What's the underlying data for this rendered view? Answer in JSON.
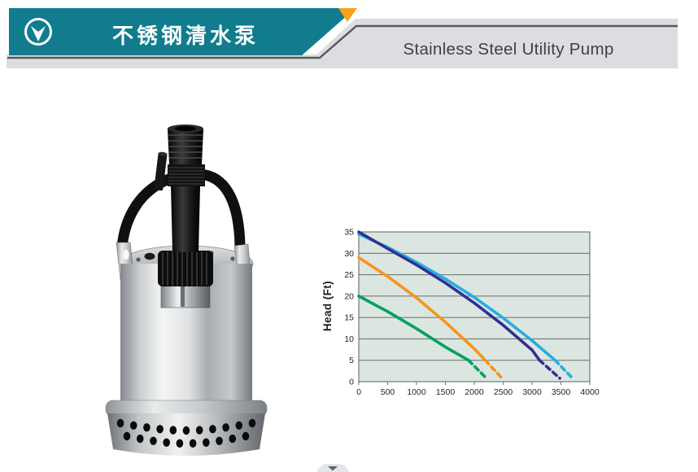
{
  "header": {
    "badge_icon": "circle-down-arrow-icon",
    "title_cn": "不锈钢清水泵",
    "title_en": "Stainless Steel Utility Pump",
    "teal_color": "#107c8d",
    "accent_orange": "#f9a11b",
    "band_gray": "#dcdde0",
    "line_gray": "#58595b"
  },
  "product_image": {
    "alt": "stainless steel submersible utility pump with hose barb outlet, carry handle and perforated strainer base"
  },
  "chart_data": {
    "type": "line",
    "title": "",
    "xlabel": "",
    "ylabel": "Head (Ft)",
    "xlim": [
      0,
      4000
    ],
    "ylim": [
      0,
      35
    ],
    "x_ticks": [
      0,
      500,
      1000,
      1500,
      2000,
      2500,
      3000,
      3500,
      4000
    ],
    "y_ticks": [
      0,
      5,
      10,
      15,
      20,
      25,
      30,
      35
    ],
    "grid": "horizontal",
    "legend": "none",
    "plot_bg": "#dce6e0",
    "grid_color": "#75787a",
    "tick_color": "#231f20",
    "series": [
      {
        "name": "curve-light-blue",
        "color": "#29abe2",
        "solid": [
          [
            0,
            34.5
          ],
          [
            500,
            31.4
          ],
          [
            1000,
            27.9
          ],
          [
            1500,
            24.0
          ],
          [
            2000,
            19.7
          ],
          [
            2500,
            14.9
          ],
          [
            3000,
            9.6
          ],
          [
            3400,
            5.0
          ]
        ],
        "dashed": [
          [
            3400,
            5.0
          ],
          [
            3700,
            0.8
          ]
        ]
      },
      {
        "name": "curve-dark-blue",
        "color": "#2e3192",
        "solid": [
          [
            0,
            35.0
          ],
          [
            500,
            31.1
          ],
          [
            1000,
            27.3
          ],
          [
            1500,
            23.1
          ],
          [
            2000,
            18.4
          ],
          [
            2500,
            13.2
          ],
          [
            3000,
            7.4
          ],
          [
            3130,
            5.0
          ]
        ],
        "dashed": [
          [
            3130,
            5.0
          ],
          [
            3480,
            0.8
          ]
        ]
      },
      {
        "name": "curve-orange",
        "color": "#f7941e",
        "solid": [
          [
            0,
            29.0
          ],
          [
            500,
            24.6
          ],
          [
            1000,
            19.6
          ],
          [
            1500,
            13.9
          ],
          [
            2000,
            7.7
          ],
          [
            2190,
            5.0
          ]
        ],
        "dashed": [
          [
            2190,
            5.0
          ],
          [
            2480,
            0.8
          ]
        ]
      },
      {
        "name": "curve-green",
        "color": "#00a160",
        "solid": [
          [
            0,
            20.0
          ],
          [
            500,
            16.4
          ],
          [
            1000,
            12.4
          ],
          [
            1500,
            8.1
          ],
          [
            1900,
            5.0
          ]
        ],
        "dashed": [
          [
            1900,
            5.0
          ],
          [
            2210,
            0.8
          ]
        ]
      }
    ]
  },
  "footer": {
    "scroll_icon": "chevron-down-icon"
  }
}
